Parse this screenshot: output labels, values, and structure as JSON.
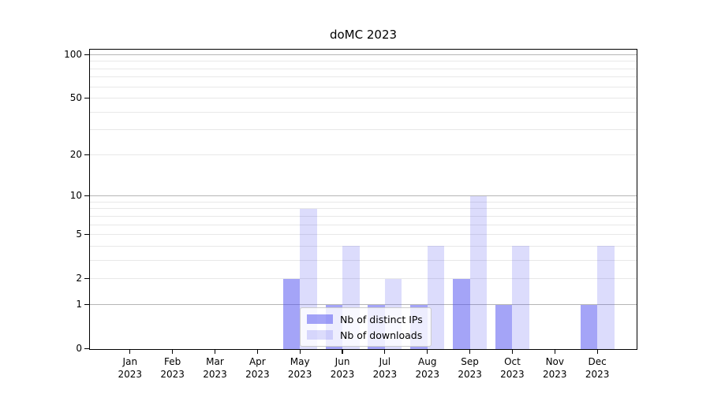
{
  "figure": {
    "title": "doMC 2023"
  },
  "legend": {
    "items": [
      {
        "label": "Nb of distinct IPs",
        "color_key": "bar_ips"
      },
      {
        "label": "Nb of downloads",
        "color_key": "bar_downloads"
      }
    ]
  },
  "colors": {
    "bar_ips": "rgba(80,80,240,0.52)",
    "bar_downloads": "rgba(80,80,240,0.20)",
    "grid_major": "#b5b5b5",
    "grid_minor": "#e8e8e8",
    "spine": "#000000",
    "text": "#000000",
    "legend_border": "#cccccc",
    "legend_bg": "rgba(255,255,255,0.8)"
  },
  "chart_data": {
    "type": "bar",
    "title": "doMC 2023",
    "categories": [
      "Jan 2023",
      "Feb 2023",
      "Mar 2023",
      "Apr 2023",
      "May 2023",
      "Jun 2023",
      "Jul 2023",
      "Aug 2023",
      "Sep 2023",
      "Oct 2023",
      "Nov 2023",
      "Dec 2023"
    ],
    "series": [
      {
        "name": "Nb of distinct IPs",
        "values": [
          0,
          0,
          0,
          0,
          2,
          1,
          1,
          1,
          2,
          1,
          0,
          1
        ]
      },
      {
        "name": "Nb of downloads",
        "values": [
          0,
          0,
          0,
          0,
          8,
          4,
          2,
          4,
          10,
          4,
          0,
          4
        ]
      }
    ],
    "xlabel": "",
    "ylabel": "",
    "yscale": "log1p",
    "ylim": [
      0,
      110
    ],
    "yticks": [
      0,
      1,
      2,
      5,
      10,
      20,
      50,
      100
    ],
    "grid": true,
    "grid_major_at": [
      1,
      10,
      100
    ],
    "grid_minor_at": [
      2,
      3,
      4,
      5,
      6,
      7,
      8,
      9,
      20,
      30,
      40,
      50,
      60,
      70,
      80,
      90
    ],
    "legend_position": "lower-center-inside"
  }
}
